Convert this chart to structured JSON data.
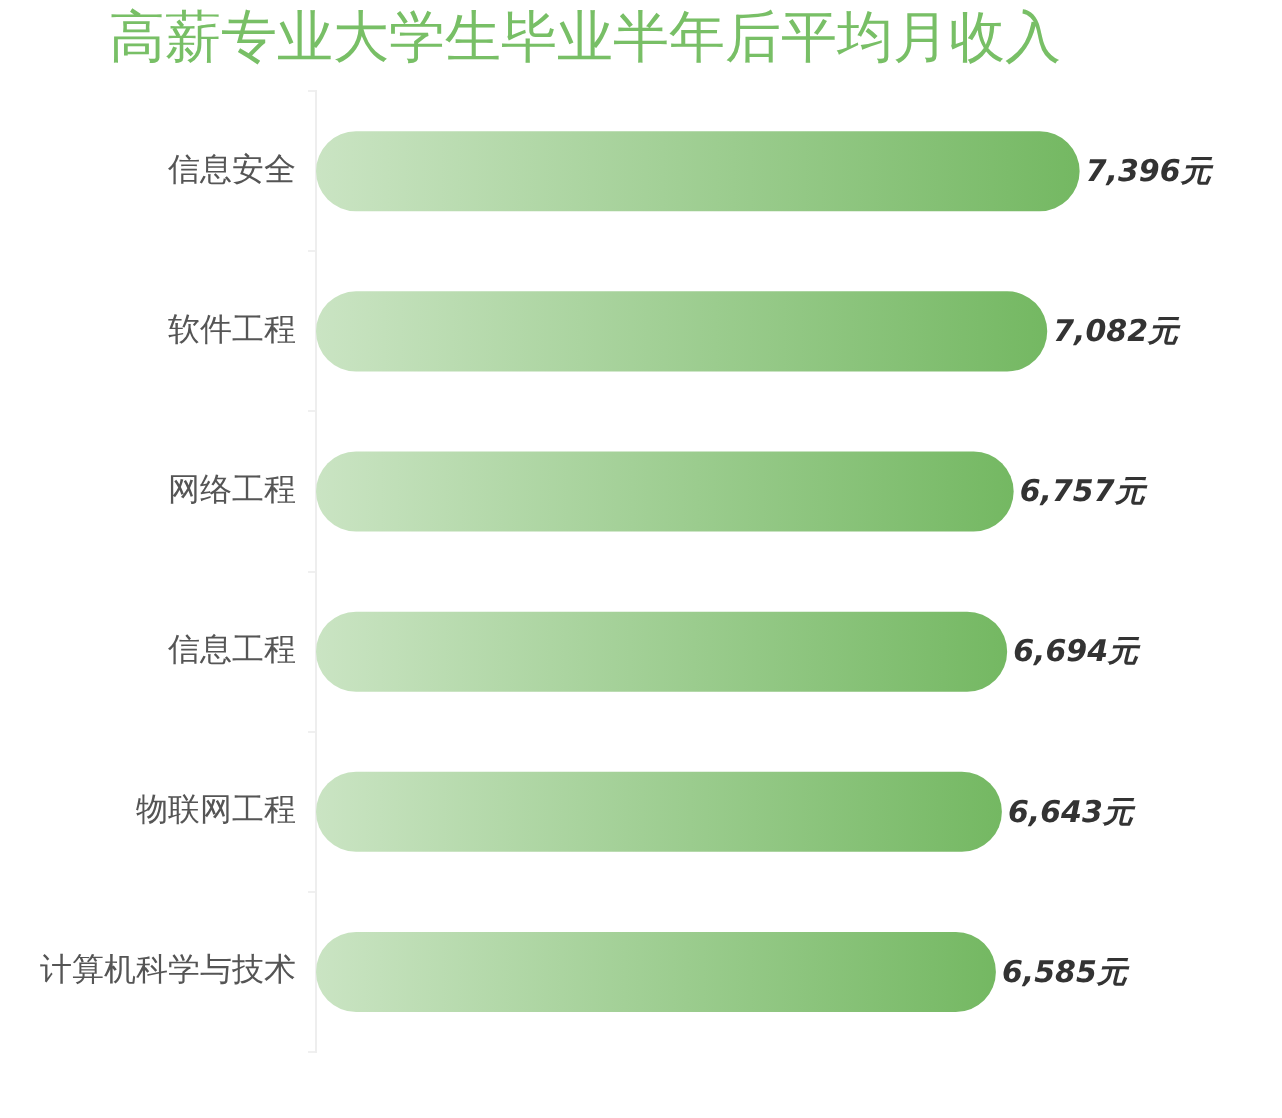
{
  "chart_data": {
    "type": "bar",
    "orientation": "horizontal",
    "title": "高薪专业大学生毕业半年后平均月收入",
    "categories": [
      "信息安全",
      "软件工程",
      "网络工程",
      "信息工程",
      "物联网工程",
      "计算机科学与技术"
    ],
    "values": [
      7396,
      7082,
      6757,
      6694,
      6643,
      6585
    ],
    "value_labels": [
      "7,396元",
      "7,082元",
      "6,757元",
      "6,694元",
      "6,643元",
      "6,585元"
    ],
    "color": "#74b862"
  }
}
